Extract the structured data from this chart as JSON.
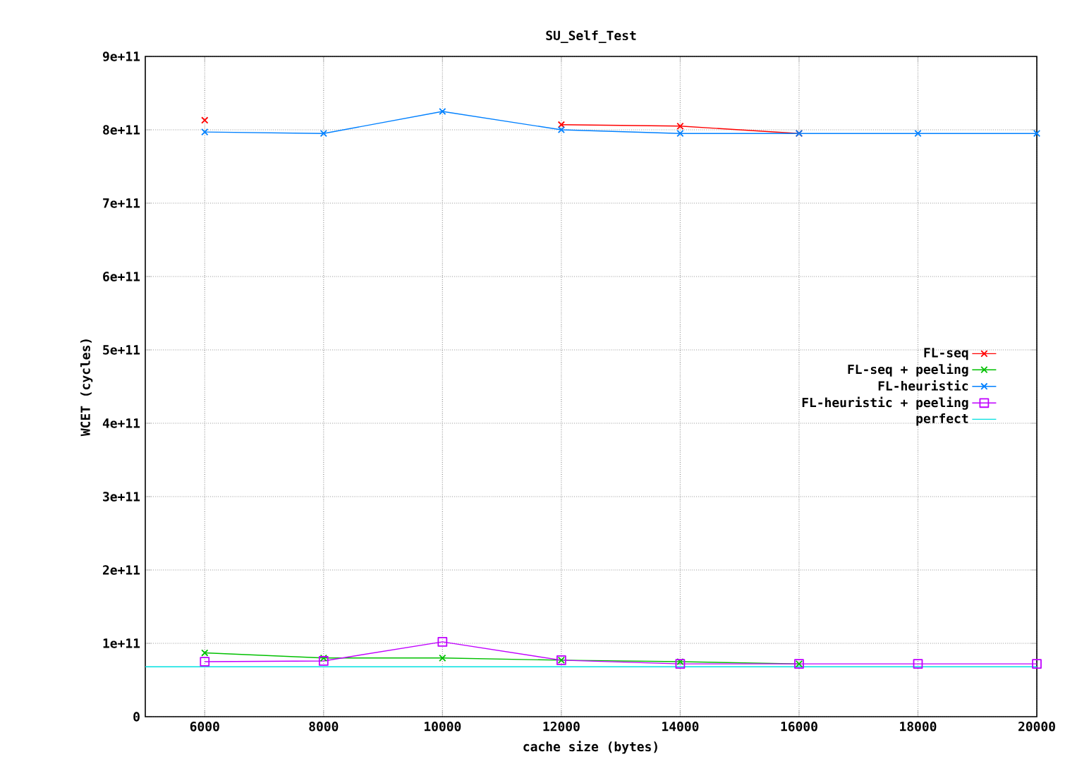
{
  "chart_data": {
    "type": "line",
    "title": "SU_Self_Test",
    "xlabel": "cache size (bytes)",
    "ylabel": "WCET (cycles)",
    "xlim": [
      5000,
      20000
    ],
    "xticks": [
      6000,
      8000,
      10000,
      12000,
      14000,
      16000,
      18000,
      20000
    ],
    "ylim": [
      0,
      900000000000.0
    ],
    "yticks": [
      0,
      {
        "value": 100000000000.0,
        "label": "1e+11"
      },
      {
        "value": 200000000000.0,
        "label": "2e+11"
      },
      {
        "value": 300000000000.0,
        "label": "3e+11"
      },
      {
        "value": 400000000000.0,
        "label": "4e+11"
      },
      {
        "value": 500000000000.0,
        "label": "5e+11"
      },
      {
        "value": 600000000000.0,
        "label": "6e+11"
      },
      {
        "value": 700000000000.0,
        "label": "7e+11"
      },
      {
        "value": 800000000000.0,
        "label": "8e+11"
      },
      {
        "value": 900000000000.0,
        "label": "9e+11"
      }
    ],
    "grid": true,
    "legend": "right",
    "series": [
      {
        "name": "FL-seq",
        "color": "#ff0000",
        "marker": "cross",
        "x": [
          6000,
          8000,
          10000,
          12000,
          14000,
          16000
        ],
        "values": [
          813000000000.0,
          null,
          null,
          807000000000.0,
          805000000000.0,
          795000000000.0
        ]
      },
      {
        "name": "FL-seq + peeling",
        "color": "#00c000",
        "marker": "cross",
        "x": [
          6000,
          8000,
          10000,
          12000,
          14000,
          16000
        ],
        "values": [
          87000000000.0,
          80000000000.0,
          80000000000.0,
          77000000000.0,
          75000000000.0,
          72000000000.0
        ]
      },
      {
        "name": "FL-heuristic",
        "color": "#0080ff",
        "marker": "cross",
        "x": [
          6000,
          8000,
          10000,
          12000,
          14000,
          16000,
          18000,
          20000
        ],
        "values": [
          797000000000.0,
          795000000000.0,
          825000000000.0,
          800000000000.0,
          795000000000.0,
          795000000000.0,
          795000000000.0,
          795000000000.0
        ]
      },
      {
        "name": "FL-heuristic + peeling",
        "color": "#c000ff",
        "marker": "square",
        "x": [
          6000,
          8000,
          10000,
          12000,
          14000,
          16000,
          18000,
          20000
        ],
        "values": [
          75000000000.0,
          76000000000.0,
          102000000000.0,
          77000000000.0,
          72000000000.0,
          72000000000.0,
          72000000000.0,
          72000000000.0
        ]
      },
      {
        "name": "perfect",
        "color": "#00e0e0",
        "marker": "none",
        "x": [
          5000,
          20000
        ],
        "values": [
          68000000000.0,
          68000000000.0
        ]
      }
    ]
  }
}
